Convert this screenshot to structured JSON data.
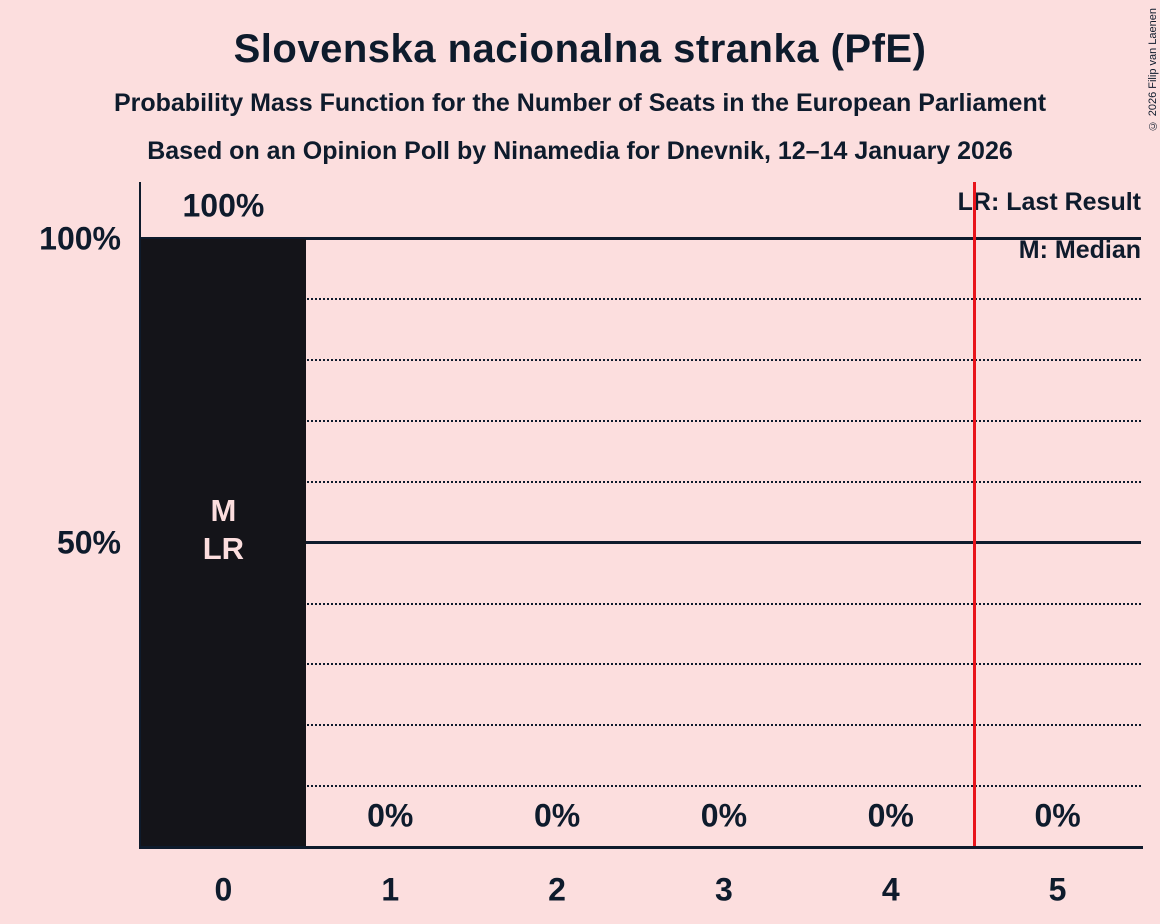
{
  "copyright": "© 2026 Filip van Laenen",
  "legend": {
    "lr": "LR: Last Result",
    "m": "M: Median"
  },
  "colors": {
    "background": "#FCDEDE",
    "text": "#0E1B2C",
    "bar": "#141419",
    "red_line": "#E8141B",
    "bar_label": "#FCDEDE"
  },
  "chart_data": {
    "type": "bar",
    "title": "Slovenska nacionalna stranka (PfE)",
    "subtitle": "Probability Mass Function for the Number of Seats in the European Parliament",
    "source_line": "Based on an Opinion Poll by Ninamedia for Dnevnik, 12–14 January 2026",
    "categories": [
      "0",
      "1",
      "2",
      "3",
      "4",
      "5"
    ],
    "values": [
      100,
      0,
      0,
      0,
      0,
      0
    ],
    "bar_value_labels": [
      "100%",
      "0%",
      "0%",
      "0%",
      "0%",
      "0%"
    ],
    "xlabel": "",
    "ylabel": "",
    "ylim": [
      0,
      100
    ],
    "ytick_labels": [
      {
        "pct": 100,
        "label": "100%"
      },
      {
        "pct": 50,
        "label": "50%"
      }
    ],
    "solid_gridlines_pct": [
      100,
      50
    ],
    "dotted_gridlines_pct": [
      90,
      80,
      70,
      60,
      40,
      30,
      20,
      10
    ],
    "bar_annotations": [
      {
        "category_index": 0,
        "lines": [
          "M",
          "LR"
        ]
      }
    ],
    "last_result_line_x": 4.5,
    "median": "0",
    "last_result": "0",
    "legend_position": "top-right",
    "grid": "horizontal-dotted"
  }
}
